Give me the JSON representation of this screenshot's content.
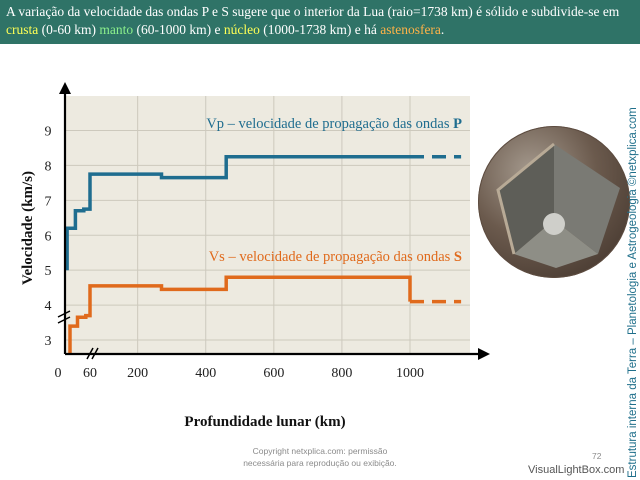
{
  "header": {
    "p1": "A variação da velocidade das ondas P e S sugere que o interior da Lua (raio=1738 km) é sólido e subdivide-se em ",
    "crusta": "crusta",
    "p2": " (0-60 km) ",
    "manto": "manto",
    "p3": " (60-1000 km) e ",
    "nucleo": "núcleo",
    "p4": " (1000-1738 km) e há ",
    "astenosfera": "astenosfera",
    "p5": "."
  },
  "chart_data": {
    "type": "line",
    "xlabel": "Profundidade lunar (km)",
    "ylabel": "Velocidade (km/s)",
    "x_ticks": [
      "0",
      "60",
      "200",
      "400",
      "600",
      "800",
      "1000"
    ],
    "y_ticks": [
      "3",
      "4",
      "5",
      "6",
      "7",
      "8",
      "9"
    ],
    "xlim": [
      0,
      1150
    ],
    "ylim": [
      2.6,
      9.3
    ],
    "series": [
      {
        "name": "Vp – velocidade de propagação das ondas P",
        "label_main": "Vp – velocidade de propagação das ondas ",
        "label_letter": "P",
        "color": "#1f6d8f",
        "points": [
          [
            5,
            5.0
          ],
          [
            5,
            6.2
          ],
          [
            25,
            6.2
          ],
          [
            25,
            6.7
          ],
          [
            45,
            6.7
          ],
          [
            45,
            6.75
          ],
          [
            60,
            6.75
          ],
          [
            60,
            7.75
          ],
          [
            270,
            7.75
          ],
          [
            270,
            7.65
          ],
          [
            460,
            7.65
          ],
          [
            460,
            8.25
          ],
          [
            1000,
            8.25
          ]
        ],
        "dashed_points": [
          [
            1000,
            8.25
          ],
          [
            1150,
            8.25
          ]
        ]
      },
      {
        "name": "Vs – velocidade de propagação das ondas S",
        "label_main": "Vs – velocidade de propagação das ondas ",
        "label_letter": "S",
        "color": "#e06a1c",
        "points": [
          [
            12,
            2.6
          ],
          [
            12,
            3.4
          ],
          [
            30,
            3.4
          ],
          [
            30,
            3.65
          ],
          [
            50,
            3.65
          ],
          [
            50,
            3.7
          ],
          [
            60,
            3.7
          ],
          [
            60,
            4.55
          ],
          [
            270,
            4.55
          ],
          [
            270,
            4.45
          ],
          [
            460,
            4.45
          ],
          [
            460,
            4.8
          ],
          [
            1000,
            4.8
          ],
          [
            1000,
            4.1
          ]
        ],
        "dashed_points": [
          [
            1000,
            4.1
          ],
          [
            1150,
            4.1
          ]
        ]
      }
    ]
  },
  "sidebar": {
    "text": "Estrutura interna da Terra – Planetologia e Astrogeologia ©netxplica.com"
  },
  "footer": {
    "copyright_line1": "Copyright netxplica.com: permissão",
    "copyright_line2": "necessária para reprodução ou exibição.",
    "page_number": "72",
    "watermark": "VisualLightBox.com"
  }
}
